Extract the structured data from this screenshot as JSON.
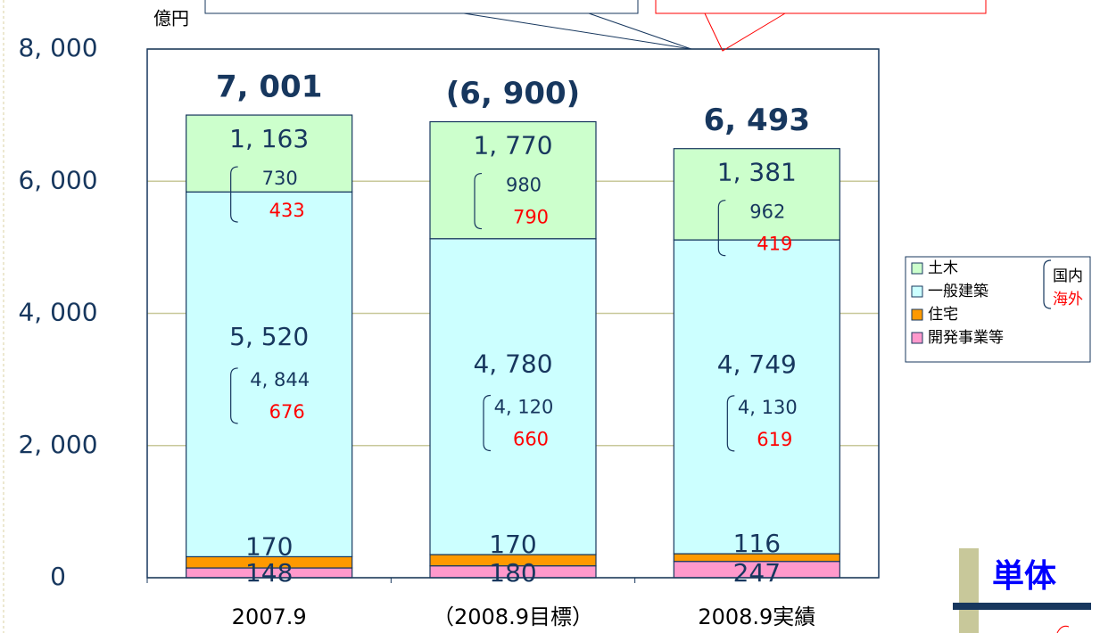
{
  "chart_data": {
    "type": "bar",
    "stacked": true,
    "y_label": "億円",
    "categories": [
      "2007.9",
      "（2008.9目標）",
      "2008.9実績"
    ],
    "ylim": [
      0,
      8000
    ],
    "yticks": [
      0,
      {
        "value": 2000,
        "label": "2, 000"
      },
      {
        "value": 4000,
        "label": "4, 000"
      },
      {
        "value": 6000,
        "label": "6, 000"
      },
      {
        "value": 8000,
        "label": "8, 000"
      }
    ],
    "grid": true,
    "series": [
      {
        "name": "開発事業等",
        "color": "#ff99cc",
        "values": [
          148,
          180,
          247
        ]
      },
      {
        "name": "住宅",
        "color": "#ff9900",
        "values": [
          170,
          170,
          116
        ]
      },
      {
        "name": "一般建築",
        "color": "#ccffff",
        "values": [
          5520,
          4780,
          4749
        ],
        "value_labels": [
          "5, 520",
          "4, 780",
          "4, 749"
        ],
        "domestic": [
          4844,
          4120,
          4130
        ],
        "domestic_labels": [
          "4, 844",
          "4, 120",
          "4, 130"
        ],
        "overseas": [
          676,
          660,
          619
        ]
      },
      {
        "name": "土木",
        "color": "#ccffcc",
        "values": [
          1163,
          1770,
          1381
        ],
        "value_labels": [
          "1, 163",
          "1, 770",
          "1, 381"
        ],
        "domestic": [
          730,
          980,
          962
        ],
        "overseas": [
          433,
          790,
          419
        ]
      }
    ],
    "totals": {
      "values": [
        7001,
        6900,
        6493
      ],
      "value_labels": [
        "7, 001",
        "(6, 900)",
        "6, 493"
      ]
    },
    "breakdown_legend": [
      "国内",
      "海外"
    ],
    "badge": "単体"
  }
}
